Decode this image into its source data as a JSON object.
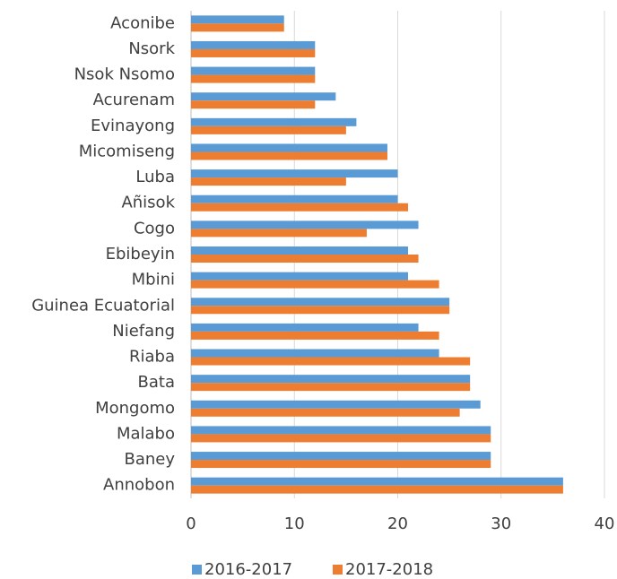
{
  "chart_data": {
    "type": "hbar",
    "categories": [
      "Aconibe",
      "Nsork",
      "Nsok Nsomo",
      "Acurenam",
      "Evinayong",
      "Micomiseng",
      "Luba",
      "Añisok",
      "Cogo",
      "Ebibeyin",
      "Mbini",
      "Guinea Ecuatorial",
      "Niefang",
      "Riaba",
      "Bata",
      "Mongomo",
      "Malabo",
      "Baney",
      "Annobon"
    ],
    "series": [
      {
        "name": "2016-2017",
        "color": "#5b9bd5",
        "values": [
          9,
          12,
          12,
          14,
          16,
          19,
          20,
          20,
          22,
          21,
          21,
          25,
          22,
          24,
          27,
          28,
          29,
          29,
          36
        ]
      },
      {
        "name": "2017-2018",
        "color": "#ed7d31",
        "values": [
          9,
          12,
          12,
          12,
          15,
          19,
          15,
          21,
          17,
          22,
          24,
          25,
          24,
          27,
          27,
          26,
          29,
          29,
          36
        ]
      }
    ],
    "xlim": [
      0,
      40
    ],
    "xticks": [
      0,
      10,
      20,
      30,
      40
    ],
    "grid": true,
    "legend": "bottom"
  }
}
